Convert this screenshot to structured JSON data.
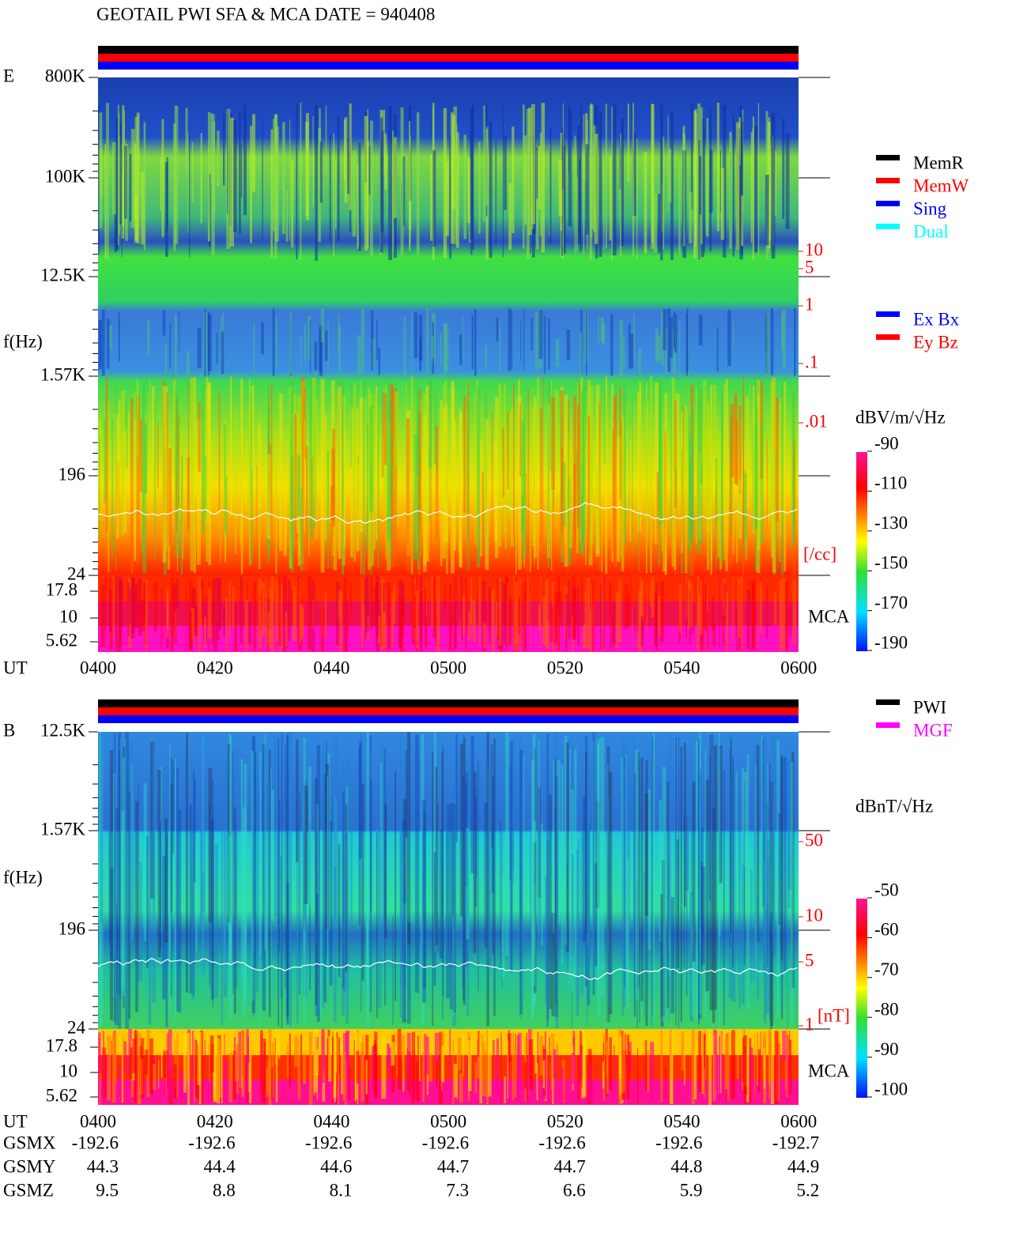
{
  "header": {
    "title": "GEOTAIL  PWI SFA & MCA   DATE = 940408"
  },
  "panel_e": {
    "label": "E",
    "y_label": "f(Hz)",
    "freq_ticks": [
      "800K",
      "100K",
      "12.5K",
      "1.57K",
      "196",
      "24"
    ],
    "mca_ticks": [
      "17.8",
      "10",
      "5.62"
    ],
    "time_label": "UT",
    "time_ticks": [
      "0400",
      "0420",
      "0440",
      "0500",
      "0520",
      "0540",
      "0600"
    ],
    "right_ticks": [
      "10",
      "5",
      "1",
      ".1",
      ".01"
    ],
    "right_unit": "[/cc]",
    "mca_label": "MCA",
    "status_legend": [
      {
        "label": "MemR",
        "color": "#000000"
      },
      {
        "label": "MemW",
        "color": "#ff0000"
      },
      {
        "label": "Sing",
        "color": "#0000ff"
      },
      {
        "label": "Dual",
        "color": "#00ffff"
      }
    ],
    "antenna_legend": [
      {
        "label": "Ex Bx",
        "color": "#0000ff"
      },
      {
        "label": "Ey Bz",
        "color": "#ff0000"
      }
    ],
    "colorbar": {
      "unit": "dBV/m/√Hz",
      "ticks": [
        "-90",
        "-110",
        "-130",
        "-150",
        "-170",
        "-190"
      ]
    }
  },
  "panel_b": {
    "label": "B",
    "y_label": "f(Hz)",
    "freq_ticks": [
      "12.5K",
      "1.57K",
      "196",
      "24"
    ],
    "mca_ticks": [
      "17.8",
      "10",
      "5.62"
    ],
    "time_label": "UT",
    "time_ticks": [
      "0400",
      "0420",
      "0440",
      "0500",
      "0520",
      "0540",
      "0600"
    ],
    "right_ticks": [
      "50",
      "10",
      "5",
      "1"
    ],
    "right_unit": "[nT]",
    "mca_label": "MCA",
    "status_legend": [
      {
        "label": "PWI",
        "color": "#000000"
      },
      {
        "label": "MGF",
        "color": "#ff00ff"
      }
    ],
    "colorbar": {
      "unit": "dBnT/√Hz",
      "ticks": [
        "-50",
        "-60",
        "-70",
        "-80",
        "-90",
        "-100"
      ]
    }
  },
  "orbit": {
    "rows": [
      {
        "label": "GSMX",
        "values": [
          "-192.6",
          "-192.6",
          "-192.6",
          "-192.6",
          "-192.6",
          "-192.6",
          "-192.7"
        ]
      },
      {
        "label": "GSMY",
        "values": [
          "44.3",
          "44.4",
          "44.6",
          "44.7",
          "44.7",
          "44.8",
          "44.9"
        ]
      },
      {
        "label": "GSMZ",
        "values": [
          "9.5",
          "8.8",
          "8.1",
          "7.3",
          "6.6",
          "5.9",
          "5.2"
        ]
      }
    ]
  }
}
